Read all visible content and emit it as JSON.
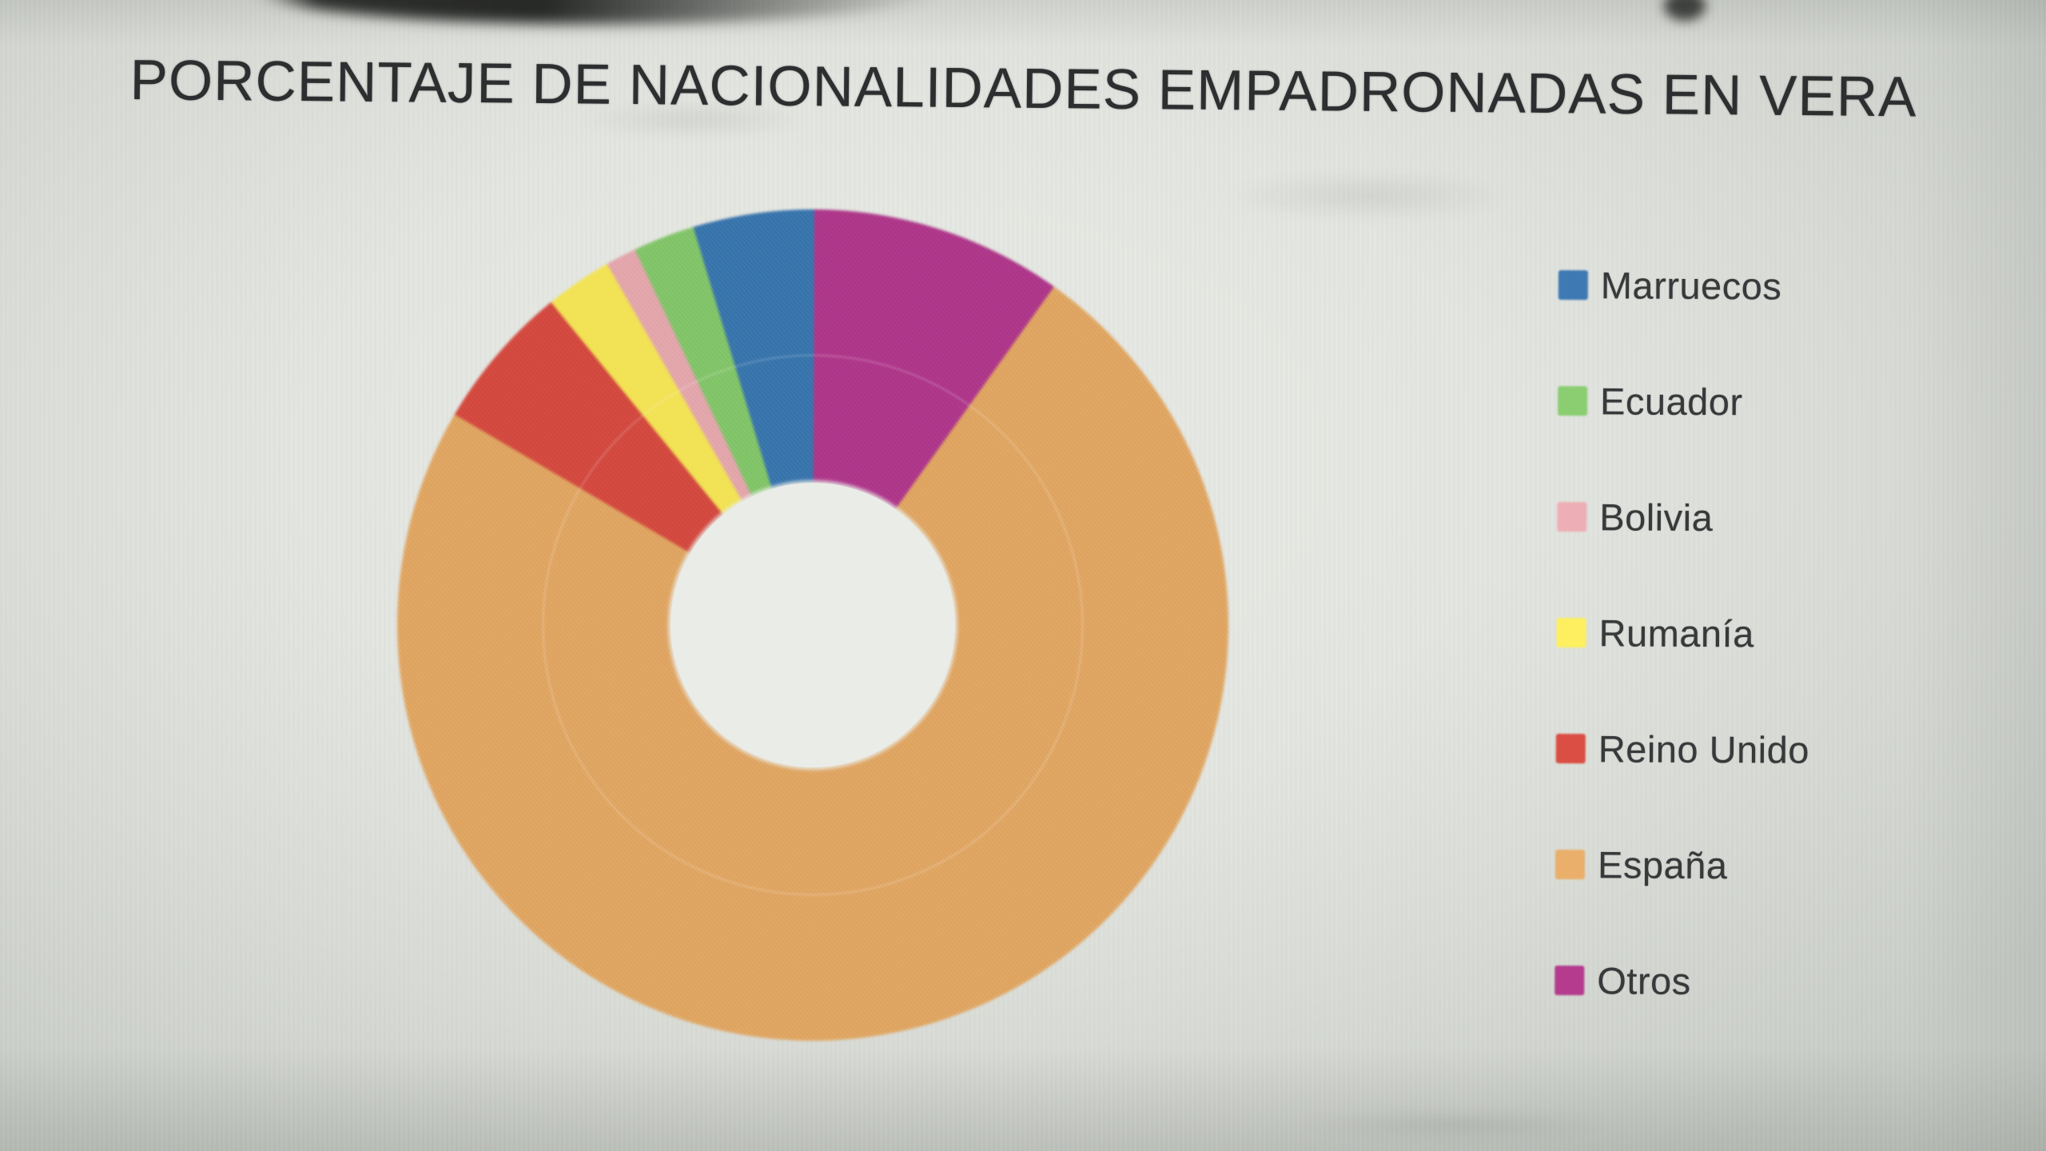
{
  "title": "PORCENTAJE DE NACIONALIDADES EMPADRONADAS EN VERA",
  "legend": {
    "items": [
      {
        "label": "Marruecos",
        "color": "#3673ae"
      },
      {
        "label": "Ecuador",
        "color": "#7ec465"
      },
      {
        "label": "Bolivia",
        "color": "#e4a4aa"
      },
      {
        "label": "Rumanía",
        "color": "#f3e24e"
      },
      {
        "label": "Reino Unido",
        "color": "#d7473d"
      },
      {
        "label": "España",
        "color": "#e1a45e"
      },
      {
        "label": "Otros",
        "color": "#b1358a"
      }
    ]
  },
  "chart_data": {
    "type": "pie",
    "subtype": "donut",
    "title": "PORCENTAJE DE NACIONALIDADES EMPADRONADAS EN VERA",
    "categories": [
      "Marruecos",
      "Ecuador",
      "Bolivia",
      "Rumanía",
      "Reino Unido",
      "España",
      "Otros"
    ],
    "values": [
      4.7,
      2.4,
      1.2,
      2.6,
      5.7,
      73.6,
      9.8
    ],
    "units": "percent",
    "colors": [
      "#3673ae",
      "#7ec465",
      "#e4a4aa",
      "#f3e24e",
      "#d7473d",
      "#e1a45e",
      "#b1358a"
    ],
    "start_angle_deg": 0,
    "direction": "counterclockwise",
    "inner_radius_ratio": 0.34,
    "legend_position": "right",
    "data_labels": false,
    "hole_color": "#eaece8"
  }
}
